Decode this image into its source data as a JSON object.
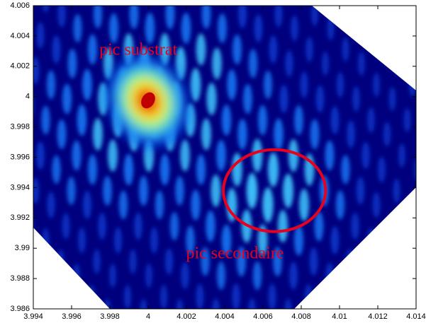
{
  "chart_data": {
    "type": "heatmap",
    "xlim": [
      3.994,
      4.014
    ],
    "ylim": [
      3.986,
      4.006
    ],
    "xticks": [
      3.994,
      3.996,
      3.998,
      4,
      4.002,
      4.004,
      4.006,
      4.008,
      4.01,
      4.012,
      4.014
    ],
    "yticks": [
      3.986,
      3.988,
      3.99,
      3.992,
      3.994,
      3.996,
      3.998,
      4,
      4.002,
      4.004,
      4.006
    ],
    "annotations": [
      {
        "text": "pic substrat",
        "x": 3.99745,
        "y": 4.00302
      },
      {
        "text": "pic secondaire",
        "x": 4.00198,
        "y": 3.98959
      }
    ],
    "ellipse": {
      "cx": 4.0066,
      "cy": 3.9938,
      "rx": 0.00267,
      "ry": 0.0027,
      "color": "#e8001c"
    }
  }
}
